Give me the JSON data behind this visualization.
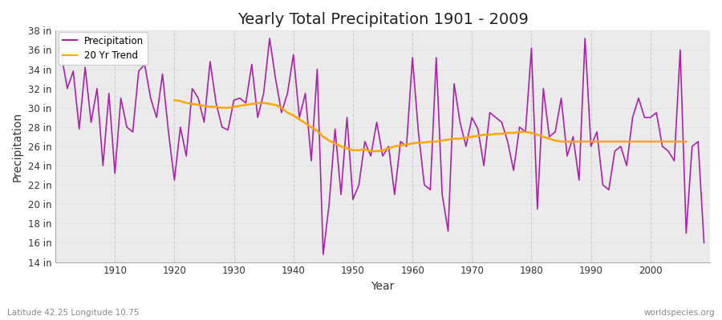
{
  "title": "Yearly Total Precipitation 1901 - 2009",
  "xlabel": "Year",
  "ylabel": "Precipitation",
  "subtitle_left": "Latitude 42.25 Longitude 10.75",
  "subtitle_right": "worldspecies.org",
  "precip_color": "#AA22AA",
  "trend_color": "#FFA500",
  "fig_bg_color": "#FFFFFF",
  "plot_bg_color": "#EBEBEB",
  "grid_color_v": "#CCCCCC",
  "grid_color_h": "#DDDDDD",
  "years": [
    1901,
    1902,
    1903,
    1904,
    1905,
    1906,
    1907,
    1908,
    1909,
    1910,
    1911,
    1912,
    1913,
    1914,
    1915,
    1916,
    1917,
    1918,
    1919,
    1920,
    1921,
    1922,
    1923,
    1924,
    1925,
    1926,
    1927,
    1928,
    1929,
    1930,
    1931,
    1932,
    1933,
    1934,
    1935,
    1936,
    1937,
    1938,
    1939,
    1940,
    1941,
    1942,
    1943,
    1944,
    1945,
    1946,
    1947,
    1948,
    1949,
    1950,
    1951,
    1952,
    1953,
    1954,
    1955,
    1956,
    1957,
    1958,
    1959,
    1960,
    1961,
    1962,
    1963,
    1964,
    1965,
    1966,
    1967,
    1968,
    1969,
    1970,
    1971,
    1972,
    1973,
    1974,
    1975,
    1976,
    1977,
    1978,
    1979,
    1980,
    1981,
    1982,
    1983,
    1984,
    1985,
    1986,
    1987,
    1988,
    1989,
    1990,
    1991,
    1992,
    1993,
    1994,
    1995,
    1996,
    1997,
    1998,
    1999,
    2000,
    2001,
    2002,
    2003,
    2004,
    2005,
    2006,
    2007,
    2008,
    2009
  ],
  "precipitation": [
    35.5,
    32.0,
    33.8,
    27.8,
    34.2,
    28.5,
    32.0,
    24.0,
    31.5,
    23.2,
    31.0,
    28.0,
    27.5,
    33.8,
    34.5,
    31.0,
    29.0,
    33.5,
    27.5,
    22.5,
    28.0,
    25.0,
    32.0,
    31.0,
    28.5,
    34.8,
    30.5,
    28.0,
    27.7,
    30.8,
    31.0,
    30.5,
    34.5,
    29.0,
    31.5,
    37.2,
    33.0,
    29.5,
    31.5,
    35.5,
    29.0,
    31.5,
    24.5,
    34.0,
    14.8,
    20.0,
    27.8,
    21.0,
    29.0,
    20.5,
    22.0,
    26.5,
    25.0,
    28.5,
    25.0,
    26.0,
    21.0,
    26.5,
    26.0,
    35.2,
    27.5,
    22.0,
    21.5,
    35.2,
    21.0,
    17.2,
    32.5,
    28.5,
    26.0,
    29.0,
    27.8,
    24.0,
    29.5,
    29.0,
    28.5,
    26.5,
    23.5,
    28.0,
    27.5,
    36.2,
    19.5,
    32.0,
    27.0,
    27.5,
    31.0,
    25.0,
    27.0,
    22.5,
    37.2,
    26.0,
    27.5,
    22.0,
    21.5,
    25.5,
    26.0,
    24.0,
    29.0,
    31.0,
    29.0,
    29.0,
    29.5,
    26.0,
    25.5,
    24.5,
    36.0,
    17.0,
    26.0,
    26.5,
    16.0
  ],
  "trend": [
    null,
    null,
    null,
    null,
    null,
    null,
    null,
    null,
    null,
    null,
    null,
    null,
    null,
    null,
    null,
    null,
    null,
    null,
    null,
    30.8,
    30.7,
    30.5,
    30.4,
    30.3,
    30.2,
    30.1,
    30.1,
    30.0,
    30.0,
    30.1,
    30.2,
    30.3,
    30.4,
    30.5,
    30.5,
    30.4,
    30.3,
    30.0,
    29.5,
    29.2,
    28.8,
    28.4,
    28.0,
    27.6,
    27.0,
    26.6,
    26.3,
    26.0,
    25.8,
    25.6,
    25.6,
    25.7,
    25.5,
    25.5,
    25.6,
    25.8,
    26.0,
    26.1,
    26.2,
    26.3,
    26.4,
    26.4,
    26.5,
    26.5,
    26.6,
    26.7,
    26.8,
    26.8,
    26.9,
    27.0,
    27.1,
    27.2,
    27.2,
    27.3,
    27.3,
    27.4,
    27.4,
    27.5,
    27.5,
    27.4,
    27.2,
    27.0,
    26.8,
    26.6,
    26.5,
    26.5,
    26.5,
    26.5,
    26.5,
    26.5,
    26.5,
    26.5,
    26.5,
    26.5,
    26.5,
    26.5,
    26.5,
    26.5,
    26.5,
    26.5,
    26.5,
    26.5,
    26.5,
    26.5,
    26.5,
    26.5,
    null,
    null
  ],
  "ylim": [
    14,
    38
  ],
  "yticks": [
    14,
    16,
    18,
    20,
    22,
    24,
    26,
    28,
    30,
    32,
    34,
    36,
    38
  ],
  "xticks": [
    1910,
    1920,
    1930,
    1940,
    1950,
    1960,
    1970,
    1980,
    1990,
    2000
  ],
  "xlim": [
    1900,
    2010
  ]
}
